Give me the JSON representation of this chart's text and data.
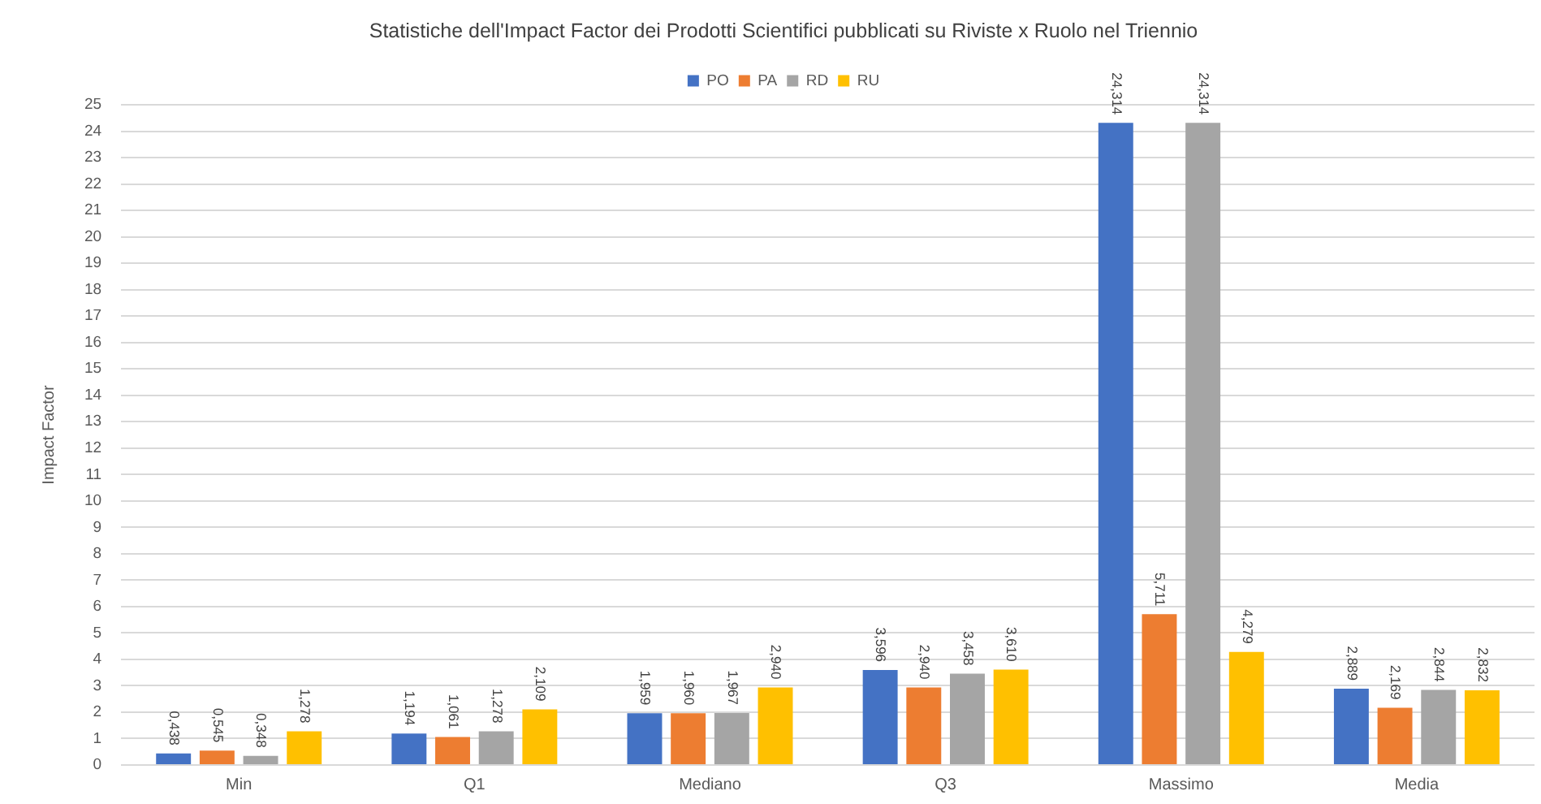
{
  "chart_data": {
    "type": "bar",
    "title": "Statistiche dell'Impact Factor dei Prodotti Scientifici pubblicati su Riviste x Ruolo nel Triennio",
    "ylabel": "Impact Factor",
    "categories": [
      "Min",
      "Q1",
      "Mediano",
      "Q3",
      "Massimo",
      "Media"
    ],
    "series": [
      {
        "name": "PO",
        "color": "#4472c4",
        "values": [
          0.438,
          1.194,
          1.959,
          3.596,
          24.314,
          2.889
        ],
        "value_labels": [
          "0,438",
          "1,194",
          "1,959",
          "3,596",
          "24,314",
          "2,889"
        ]
      },
      {
        "name": "PA",
        "color": "#ed7d31",
        "values": [
          0.545,
          1.061,
          1.96,
          2.94,
          5.711,
          2.169
        ],
        "value_labels": [
          "0,545",
          "1,061",
          "1,960",
          "2,940",
          "5,711",
          "2,169"
        ]
      },
      {
        "name": "RD",
        "color": "#a5a5a5",
        "values": [
          0.348,
          1.278,
          1.967,
          3.458,
          24.314,
          2.844
        ],
        "value_labels": [
          "0,348",
          "1,278",
          "1,967",
          "3,458",
          "24,314",
          "2,844"
        ]
      },
      {
        "name": "RU",
        "color": "#ffc000",
        "values": [
          1.278,
          2.109,
          2.94,
          3.61,
          4.279,
          2.832
        ],
        "value_labels": [
          "1,278",
          "2,109",
          "2,940",
          "3,610",
          "4,279",
          "2,832"
        ]
      }
    ],
    "ylim": [
      0,
      25
    ],
    "yticks": [
      0,
      1,
      2,
      3,
      4,
      5,
      6,
      7,
      8,
      9,
      10,
      11,
      12,
      13,
      14,
      15,
      16,
      17,
      18,
      19,
      20,
      21,
      22,
      23,
      24,
      25
    ],
    "grid": "y",
    "legend": "top"
  }
}
